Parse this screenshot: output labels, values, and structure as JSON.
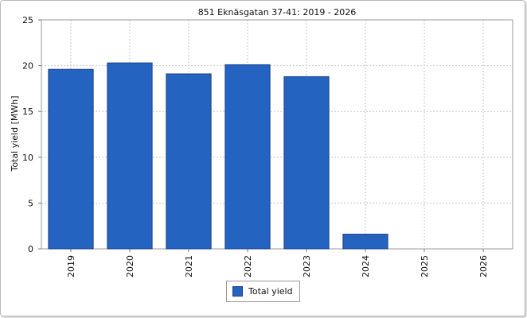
{
  "chart_data": {
    "type": "bar",
    "title": "851 Eknäsgatan 37-41: 2019 - 2026",
    "xlabel": "",
    "ylabel": "Total yield [MWh]",
    "categories": [
      "2019",
      "2020",
      "2021",
      "2022",
      "2023",
      "2024",
      "2025",
      "2026"
    ],
    "series": [
      {
        "name": "Total yield",
        "values": [
          19.6,
          20.3,
          19.1,
          20.1,
          18.8,
          1.6,
          0,
          0
        ],
        "color": "#2563c0"
      }
    ],
    "ylim": [
      0,
      25
    ],
    "yticks": [
      "0",
      "5",
      "10",
      "15",
      "20",
      "25"
    ],
    "grid": true,
    "legend_position": "bottom-center"
  }
}
